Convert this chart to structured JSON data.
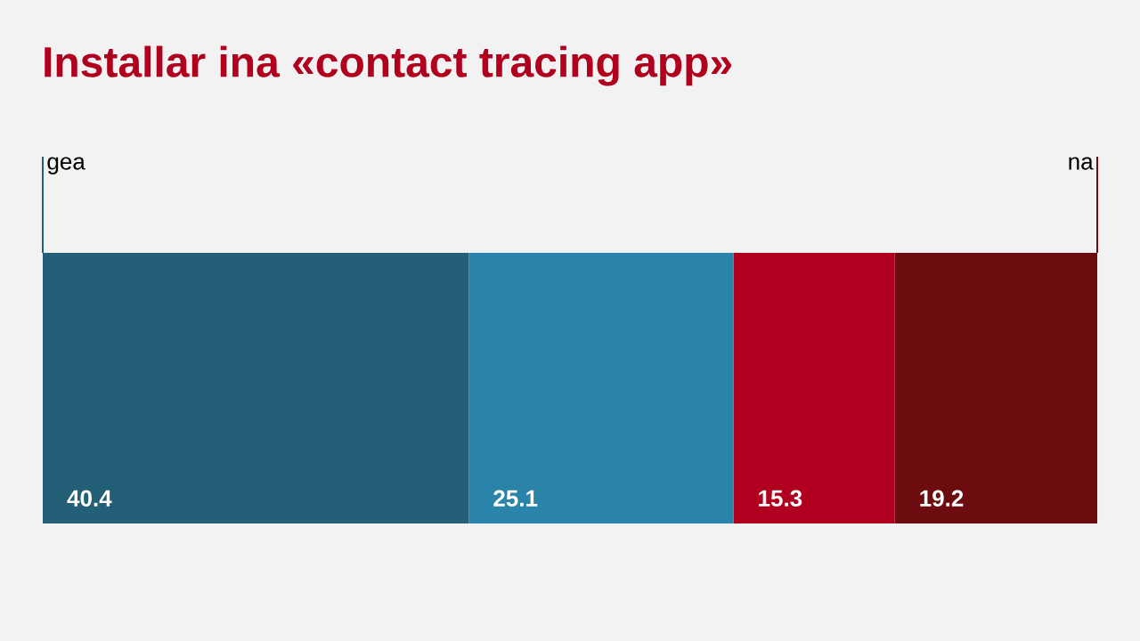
{
  "chart_data": {
    "type": "bar",
    "orientation": "horizontal",
    "stacked": true,
    "title": "Installar ina «contact tracing app»",
    "categories": [
      null
    ],
    "data_labels": true,
    "series": [
      {
        "color": "#236078",
        "values": [
          40.4
        ]
      },
      {
        "color": "#2a83a8",
        "values": [
          25.1
        ]
      },
      {
        "color": "#b1001f",
        "values": [
          15.3
        ]
      },
      {
        "color": "#6c0c0e",
        "values": [
          19.2
        ]
      }
    ],
    "annotations": [
      "gea",
      "na"
    ]
  }
}
